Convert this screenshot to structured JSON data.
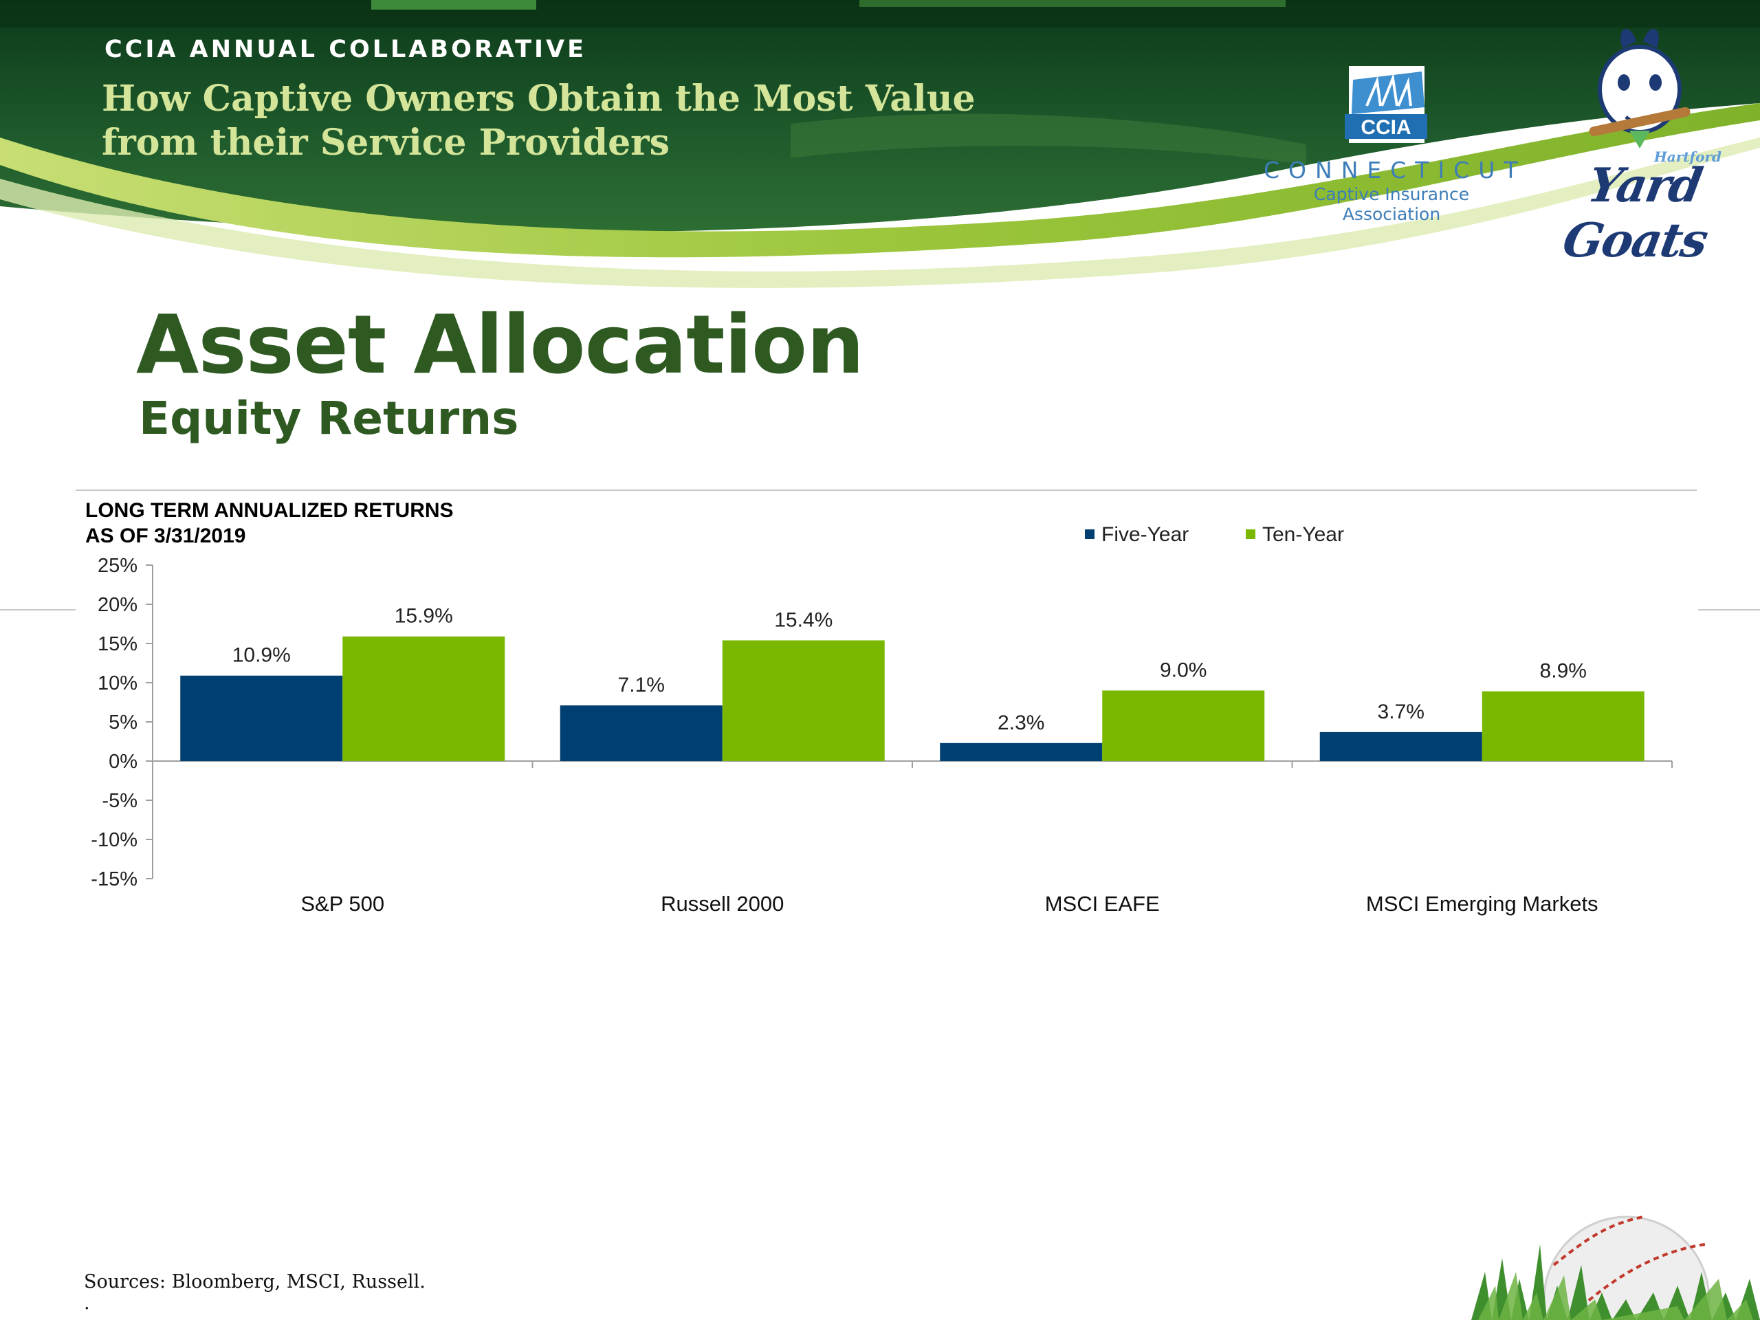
{
  "header": {
    "event_label": "CCIA ANNUAL COLLABORATIVE",
    "event_title_line1": "How Captive Owners Obtain the Most Value",
    "event_title_line2": "from their Service Providers",
    "org_logo_text": "CCIA",
    "org_name": "CONNECTICUT",
    "org_subtitle": "Captive Insurance Association",
    "team_city": "Hartford",
    "team_name": "Yard Goats"
  },
  "slide": {
    "title": "Asset Allocation",
    "subtitle": "Equity Returns"
  },
  "chart_data": {
    "type": "bar",
    "title_line1": "LONG TERM ANNUALIZED RETURNS",
    "title_line2": "AS OF 3/31/2019",
    "categories": [
      "S&P 500",
      "Russell 2000",
      "MSCI EAFE",
      "MSCI Emerging Markets"
    ],
    "series": [
      {
        "name": "Five-Year",
        "color": "#003f72",
        "values": [
          10.9,
          7.1,
          2.3,
          3.7
        ],
        "labels": [
          "10.9%",
          "7.1%",
          "2.3%",
          "3.7%"
        ]
      },
      {
        "name": "Ten-Year",
        "color": "#7ab800",
        "values": [
          15.9,
          15.4,
          9.0,
          8.9
        ],
        "labels": [
          "15.9%",
          "15.4%",
          "9.0%",
          "8.9%"
        ]
      }
    ],
    "yticks": [
      "25%",
      "20%",
      "15%",
      "10%",
      "5%",
      "0%",
      "-5%",
      "-10%",
      "-15%"
    ],
    "ylim": [
      -15,
      25
    ],
    "ystep": 5,
    "grid": false,
    "legend_position": "top-right"
  },
  "footer": {
    "sources": "Sources: Bloomberg, MSCI, Russell.",
    "note": "."
  }
}
